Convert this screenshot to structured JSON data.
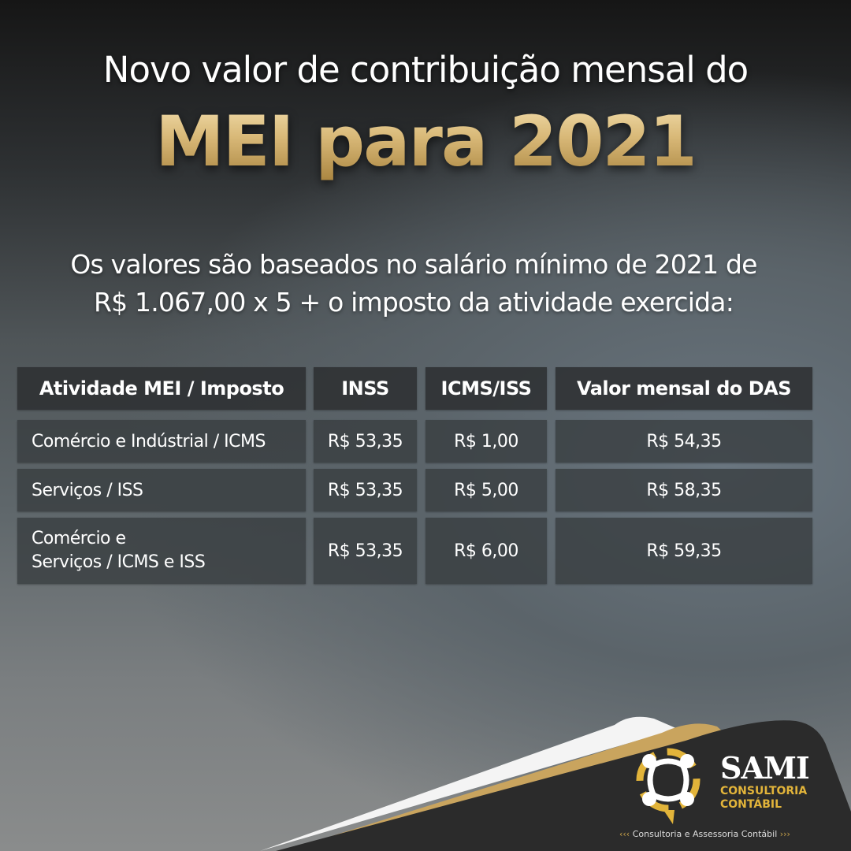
{
  "header": {
    "line1": "Novo valor de contribuição mensal do",
    "line2": "MEI para 2021"
  },
  "subtitle": {
    "line1": "Os valores são baseados no salário mínimo de 2021 de",
    "line2": "R$ 1.067,00 x 5 + o imposto da atividade exercida:"
  },
  "table": {
    "headers": [
      "Atividade MEI / Imposto",
      "INSS",
      "ICMS/ISS",
      "Valor mensal do DAS"
    ],
    "rows": [
      {
        "atividade": "Comércio e Indústrial / ICMS",
        "inss": "R$ 53,35",
        "icms_iss": "R$ 1,00",
        "das": "R$ 54,35"
      },
      {
        "atividade": "Serviços / ISS",
        "inss": "R$ 53,35",
        "icms_iss": "R$ 5,00",
        "das": "R$ 58,35"
      },
      {
        "atividade": "Comércio e\nServiços / ICMS e ISS",
        "inss": "R$ 53,35",
        "icms_iss": "R$ 6,00",
        "das": "R$ 59,35"
      }
    ]
  },
  "brand": {
    "name": "SAMI",
    "sub1": "CONSULTORIA",
    "sub2": "CONTÁBIL",
    "tagline": "Consultoria e Assessoria Contábil",
    "accent": "#e2b43a",
    "gold": "#d8b877"
  }
}
